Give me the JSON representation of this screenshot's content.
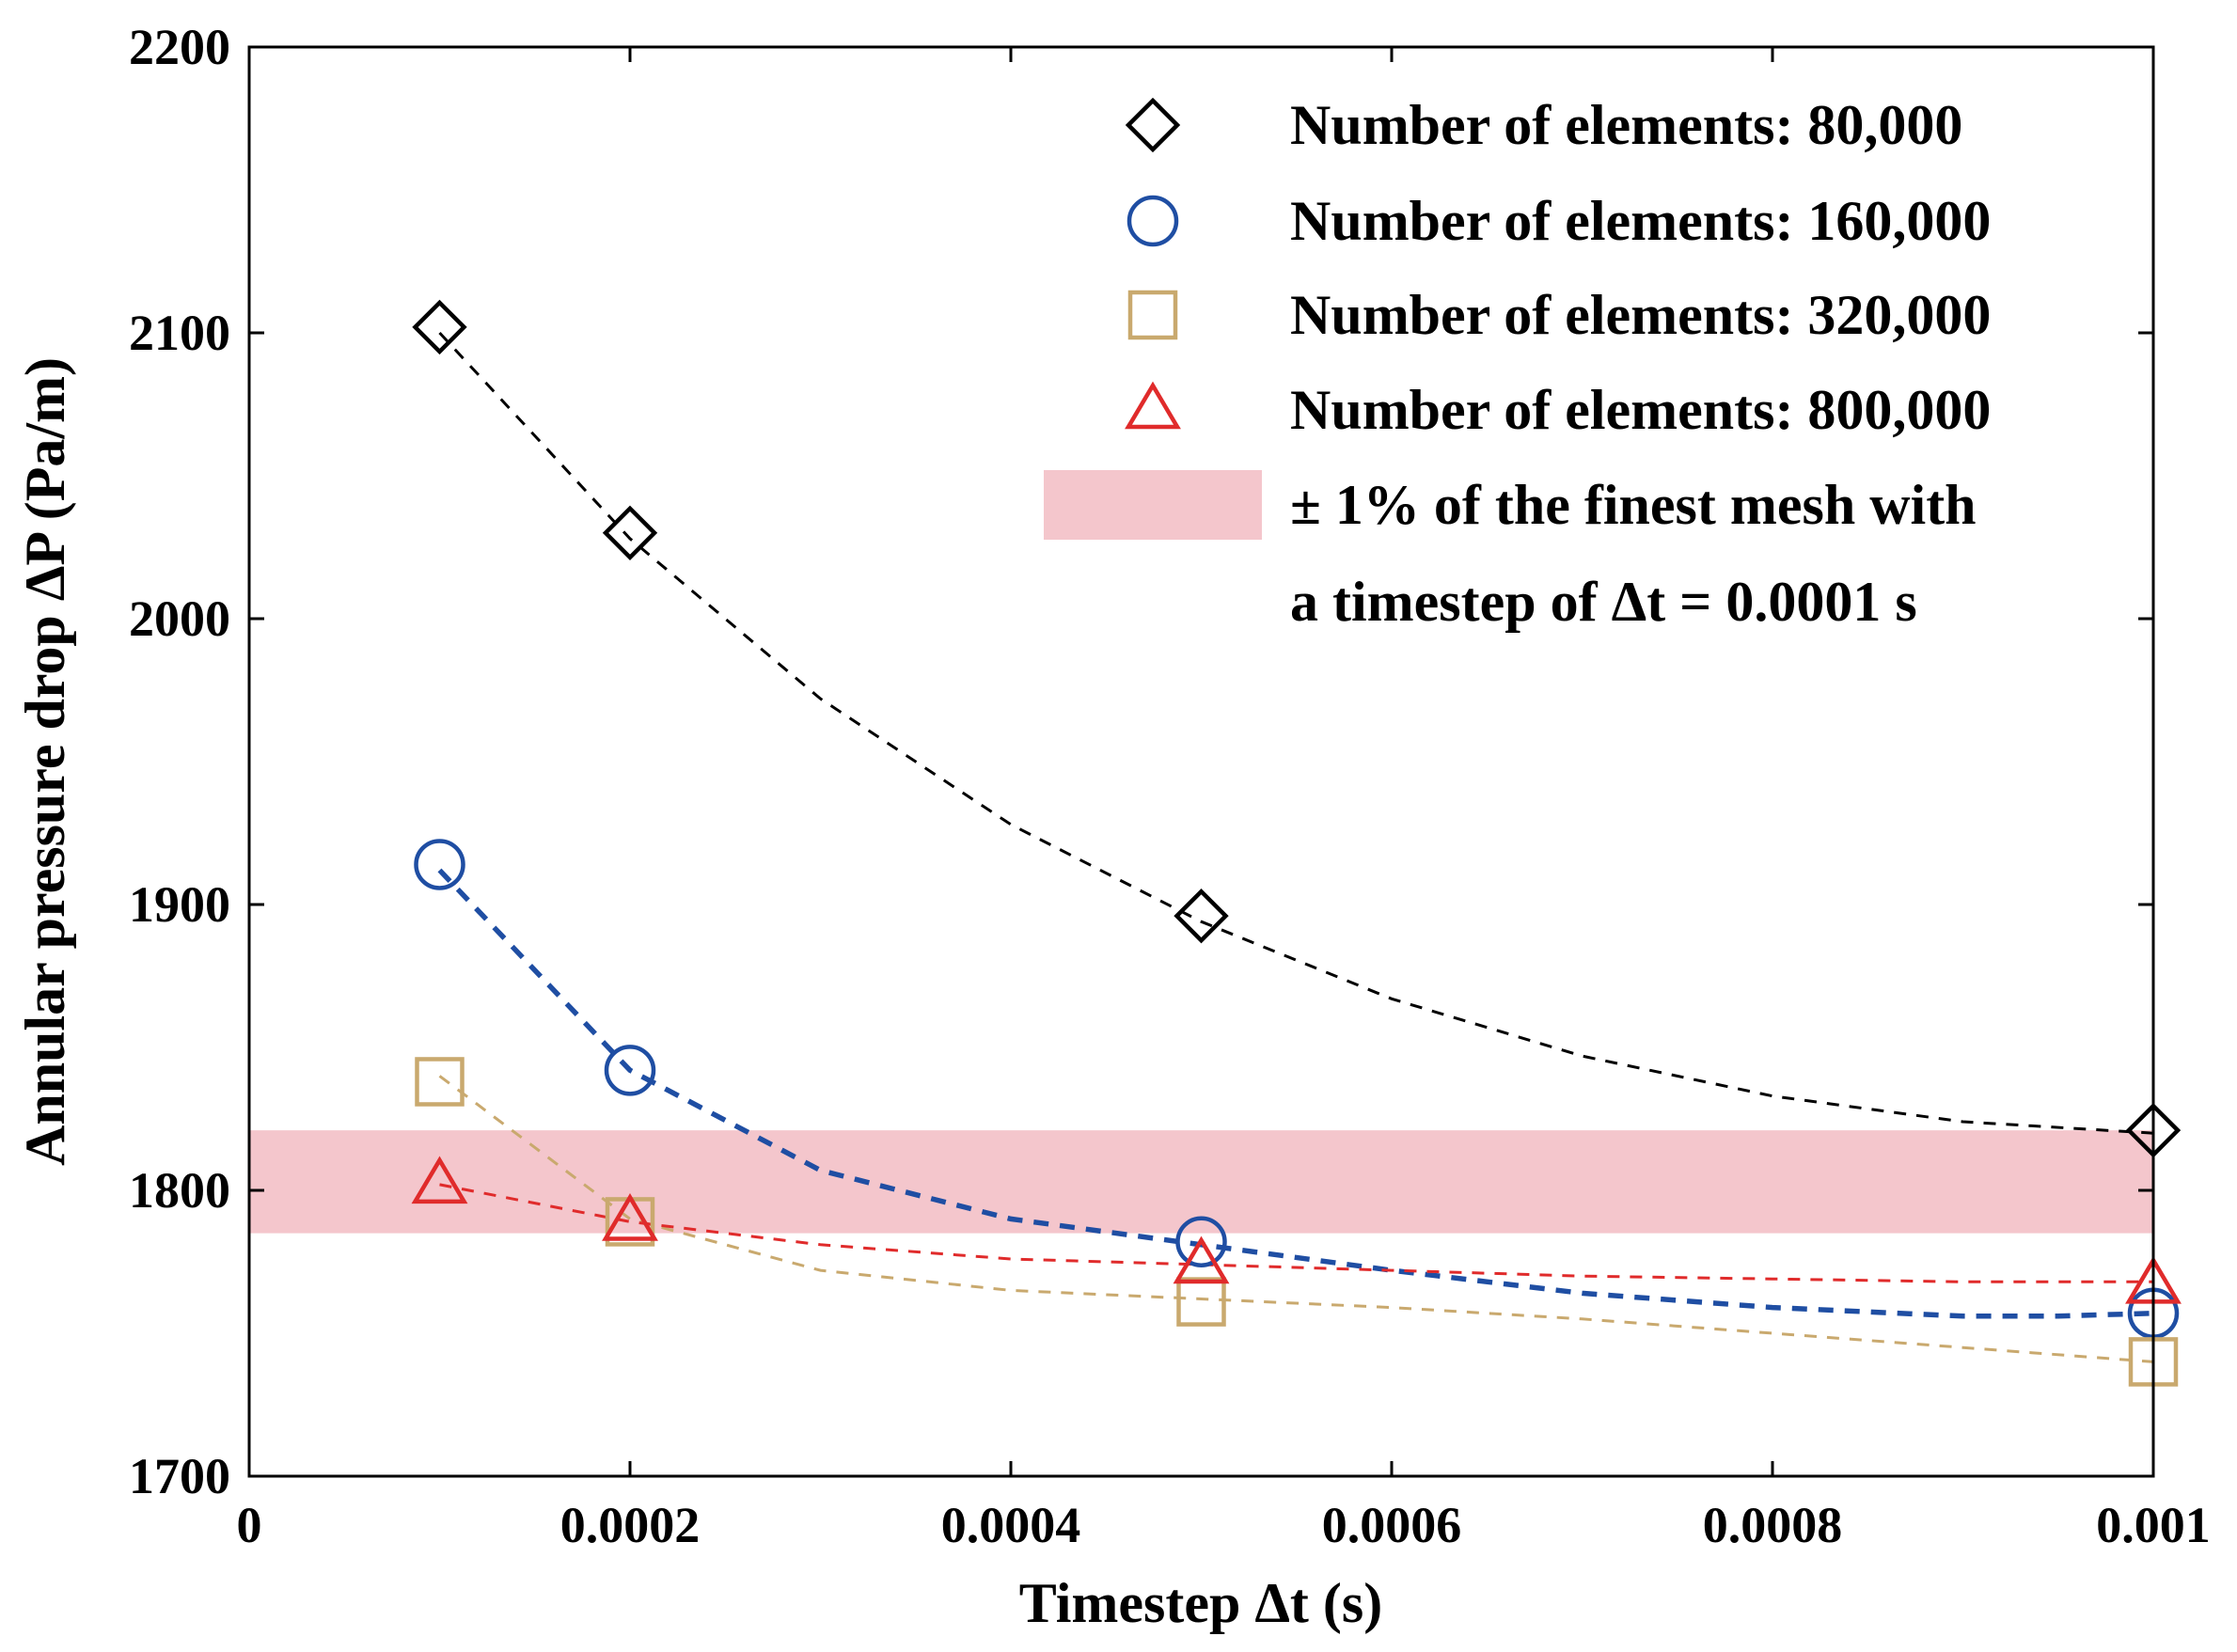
{
  "chart_data": {
    "type": "scatter",
    "title": "",
    "xlabel": "Timestep Δt (s)",
    "ylabel": "Annular pressure drop ΔP (Pa/m)",
    "xlim": [
      0,
      0.001
    ],
    "ylim": [
      1700,
      2200
    ],
    "xticks": [
      0,
      0.0002,
      0.0004,
      0.0006,
      0.0008,
      0.001
    ],
    "xtick_labels": [
      "0",
      "0.0002",
      "0.0004",
      "0.0006",
      "0.0008",
      "0.001"
    ],
    "yticks": [
      1700,
      1800,
      1900,
      2000,
      2100,
      2200
    ],
    "ytick_labels": [
      "1700",
      "1800",
      "1900",
      "2000",
      "2100",
      "2200"
    ],
    "grid": false,
    "legend_position": "top-right",
    "band": {
      "label_line1": "± 1% of the finest mesh with",
      "label_line2": "a timestep of Δt = 0.0001 s",
      "ymin": 1785,
      "ymax": 1821,
      "color": "#f4c6cc"
    },
    "series": [
      {
        "name": "Number of elements: 80,000",
        "marker": "diamond",
        "color": "#000000",
        "x": [
          0.0001,
          0.0002,
          0.0005,
          0.001
        ],
        "y": [
          2102,
          2030,
          1896,
          1821
        ],
        "fit": [
          [
            0.0001,
            2100
          ],
          [
            0.0002,
            2028
          ],
          [
            0.0003,
            1972
          ],
          [
            0.0004,
            1928
          ],
          [
            0.0005,
            1894
          ],
          [
            0.0006,
            1867
          ],
          [
            0.0007,
            1847
          ],
          [
            0.0008,
            1833
          ],
          [
            0.0009,
            1824
          ],
          [
            0.001,
            1820
          ]
        ]
      },
      {
        "name": "Number of elements: 160,000",
        "marker": "circle",
        "color": "#1f4ea3",
        "x": [
          0.0001,
          0.0002,
          0.0005,
          0.001
        ],
        "y": [
          1914,
          1842,
          1782,
          1757
        ],
        "fit": [
          [
            0.0001,
            1912
          ],
          [
            0.0002,
            1842
          ],
          [
            0.0003,
            1807
          ],
          [
            0.0004,
            1790
          ],
          [
            0.0005,
            1781
          ],
          [
            0.0006,
            1772
          ],
          [
            0.0007,
            1764
          ],
          [
            0.0008,
            1759
          ],
          [
            0.0009,
            1756
          ],
          [
            0.00095,
            1756
          ],
          [
            0.001,
            1757
          ]
        ]
      },
      {
        "name": "Number of elements: 320,000",
        "marker": "square",
        "color": "#c9a96e",
        "x": [
          0.0001,
          0.0002,
          0.0005,
          0.001
        ],
        "y": [
          1838,
          1789,
          1761,
          1740
        ],
        "fit": [
          [
            0.0001,
            1840
          ],
          [
            0.0002,
            1790
          ],
          [
            0.0003,
            1772
          ],
          [
            0.0004,
            1765
          ],
          [
            0.0005,
            1762
          ],
          [
            0.0006,
            1759
          ],
          [
            0.0007,
            1755
          ],
          [
            0.0008,
            1750
          ],
          [
            0.0009,
            1745
          ],
          [
            0.001,
            1740
          ]
        ]
      },
      {
        "name": "Number of elements: 800,000",
        "marker": "triangle",
        "color": "#e02b2b",
        "x": [
          0.0001,
          0.0002,
          0.0005,
          0.001
        ],
        "y": [
          1802,
          1789,
          1774,
          1767
        ],
        "fit": [
          [
            0.0001,
            1802
          ],
          [
            0.0002,
            1789
          ],
          [
            0.0003,
            1781
          ],
          [
            0.0004,
            1776
          ],
          [
            0.0005,
            1774
          ],
          [
            0.0006,
            1772
          ],
          [
            0.0007,
            1770
          ],
          [
            0.0008,
            1769
          ],
          [
            0.0009,
            1768
          ],
          [
            0.001,
            1768
          ]
        ]
      }
    ]
  }
}
